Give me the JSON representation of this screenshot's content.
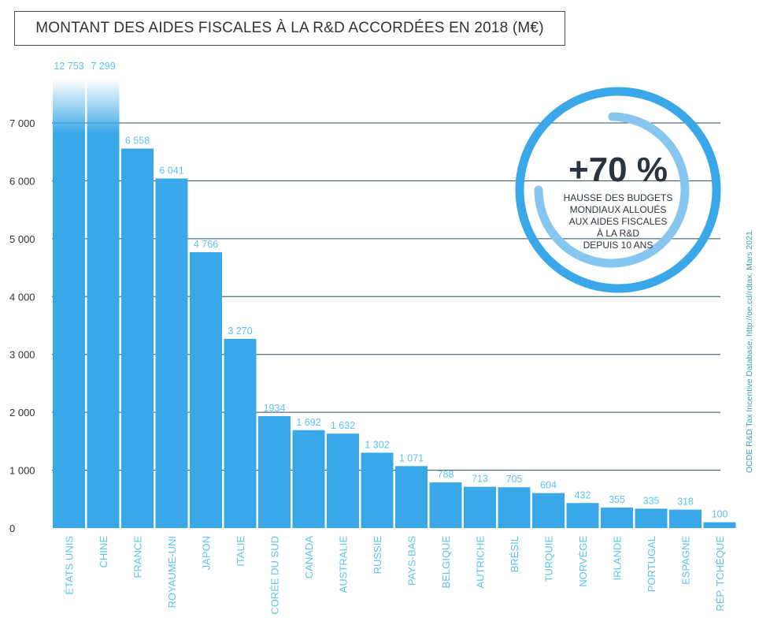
{
  "title": "MONTANT DES AIDES FISCALES À LA R&D ACCORDÉES EN 2018 (M€)",
  "source": "OCDE R&D Tax Incentive Database, http://oe.cd/rdtax, Mars 2021.",
  "callout": {
    "value": "+70 %",
    "description": "HAUSSE DES BUDGETS\nMONDIAUX ALLOUÉS\nAUX AIDES FISCALES\nÀ LA R&D\nDEPUIS 10 ANS"
  },
  "colors": {
    "bar": "#3aa8e8",
    "label": "#5cc3ee",
    "axis_text": "#333333",
    "grid": "#2e4a5a",
    "ring": "#3aa8e8"
  },
  "chart_data": {
    "type": "bar",
    "title": "MONTANT DES AIDES FISCALES À LA R&D ACCORDÉES EN 2018 (M€)",
    "xlabel": "",
    "ylabel": "",
    "ylim": [
      0,
      7000
    ],
    "yticks": [
      0,
      1000,
      2000,
      3000,
      4000,
      5000,
      6000,
      7000
    ],
    "ytick_labels": [
      "0",
      "1 000",
      "2 000",
      "3 000",
      "4 000",
      "5 000",
      "6 000",
      "7 000"
    ],
    "grid": true,
    "categories": [
      "ÉTATS UNIS",
      "CHINE",
      "FRANCE",
      "ROYAUME-UNI",
      "JAPON",
      "ITALIE",
      "CORÉE DU SUD",
      "CANADA",
      "AUSTRALIE",
      "RUSSIE",
      "PAYS-BAS",
      "BELGIQUE",
      "AUTRICHE",
      "BRÉSIL",
      "TURQUIE",
      "NORVÈGE",
      "IRLANDE",
      "PORTUGAL",
      "ESPAGNE",
      "RÉP. TCHÈQUE"
    ],
    "values": [
      12753,
      7299,
      6558,
      6041,
      4766,
      3270,
      1934,
      1692,
      1632,
      1302,
      1071,
      788,
      713,
      705,
      604,
      432,
      355,
      335,
      318,
      100
    ],
    "value_labels": [
      "12 753",
      "7 299",
      "6 558",
      "6 041",
      "4 766",
      "3 270",
      "1934",
      "1 692",
      "1 632",
      "1 302",
      "1 071",
      "788",
      "713",
      "705",
      "604",
      "432",
      "355",
      "335",
      "318",
      "100"
    ]
  }
}
